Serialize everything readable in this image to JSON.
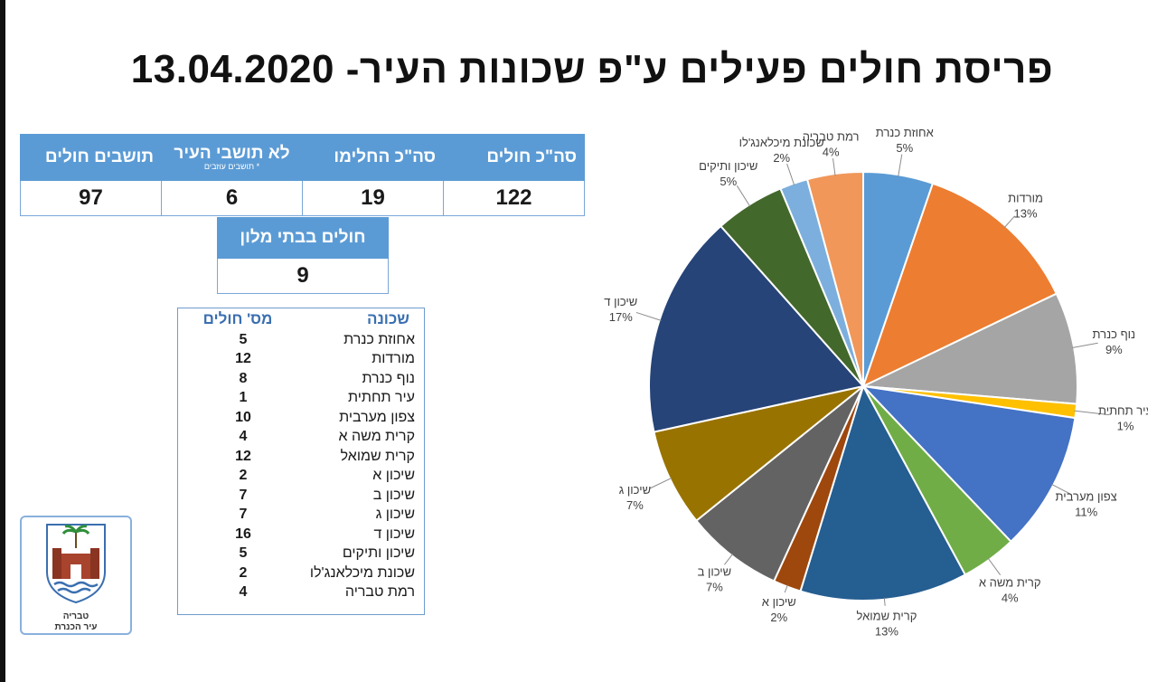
{
  "title": "פריסת חולים פעילים ע\"פ שכונות העיר- 13.04.2020",
  "summary": {
    "headers": [
      "סה\"כ חולים",
      "סה\"כ החלימו",
      "לא תושבי העיר",
      "תושבים חולים"
    ],
    "sub_note": "* תושבים עוזבים",
    "values": [
      "122",
      "19",
      "6",
      "97"
    ]
  },
  "hotel": {
    "header": "חולים בבתי מלון",
    "value": "9"
  },
  "neighborhoods": {
    "col_name": "שכונה",
    "col_count": "מס' חולים",
    "rows": [
      {
        "name": "אחוזת כנרת",
        "count": "5"
      },
      {
        "name": "מורדות",
        "count": "12"
      },
      {
        "name": "נוף כנרת",
        "count": "8"
      },
      {
        "name": "עיר תחתית",
        "count": "1"
      },
      {
        "name": "צפון מערבית",
        "count": "10"
      },
      {
        "name": "קרית משה א",
        "count": "4"
      },
      {
        "name": "קרית שמואל",
        "count": "12"
      },
      {
        "name": "שיכון א",
        "count": "2"
      },
      {
        "name": "שיכון ב",
        "count": "7"
      },
      {
        "name": "שיכון ג",
        "count": "7"
      },
      {
        "name": "שיכון ד",
        "count": "16"
      },
      {
        "name": "שיכון ותיקים",
        "count": "5"
      },
      {
        "name": "שכונת מיכלאנג'לו",
        "count": "2"
      },
      {
        "name": "רמת טבריה",
        "count": "4"
      }
    ]
  },
  "logo": {
    "line1": "טבריה",
    "line2": "עיר הכנרת"
  },
  "chart_data": {
    "type": "pie",
    "title": "",
    "slices": [
      {
        "label": "אחוזת כנרת",
        "value": 5,
        "pct": "5%",
        "color": "#5b9bd5"
      },
      {
        "label": "מורדות",
        "value": 12,
        "pct": "13%",
        "color": "#ed7d31"
      },
      {
        "label": "נוף כנרת",
        "value": 8,
        "pct": "9%",
        "color": "#a5a5a5"
      },
      {
        "label": "עיר תחתית",
        "value": 1,
        "pct": "1%",
        "color": "#ffc000"
      },
      {
        "label": "צפון מערבית",
        "value": 10,
        "pct": "11%",
        "color": "#4472c4"
      },
      {
        "label": "קרית משה א",
        "value": 4,
        "pct": "4%",
        "color": "#70ad47"
      },
      {
        "label": "קרית שמואל",
        "value": 12,
        "pct": "13%",
        "color": "#255e91"
      },
      {
        "label": "שיכון א",
        "value": 2,
        "pct": "2%",
        "color": "#9e480e"
      },
      {
        "label": "שיכון ב",
        "value": 7,
        "pct": "7%",
        "color": "#636363"
      },
      {
        "label": "שיכון ג",
        "value": 7,
        "pct": "7%",
        "color": "#997300"
      },
      {
        "label": "שיכון ד",
        "value": 16,
        "pct": "17%",
        "color": "#264478"
      },
      {
        "label": "שיכון ותיקים",
        "value": 5,
        "pct": "5%",
        "color": "#43682b"
      },
      {
        "label": "שכונת מיכלאנג'לו",
        "value": 2,
        "pct": "2%",
        "color": "#7cafdd"
      },
      {
        "label": "רמת טבריה",
        "value": 4,
        "pct": "4%",
        "color": "#f1975a"
      }
    ]
  }
}
